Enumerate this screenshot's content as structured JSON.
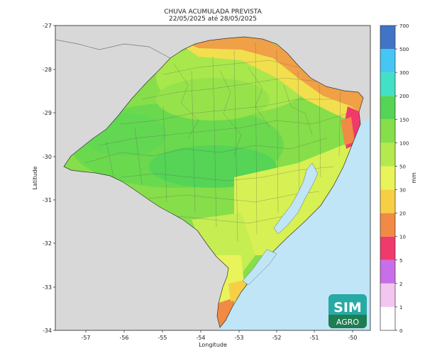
{
  "title": "CHUVA ACUMULADA PREVISTA",
  "subtitle": "22/05/2025 até 28/05/2025",
  "axes": {
    "xlabel": "Longitude",
    "ylabel": "Latitude",
    "x_ticks": [
      "-57",
      "-56",
      "-55",
      "-54",
      "-53",
      "-52",
      "-51",
      "-50"
    ],
    "y_ticks": [
      "-27",
      "-28",
      "-29",
      "-30",
      "-31",
      "-32",
      "-33",
      "-34"
    ]
  },
  "colorbar": {
    "unit": "mm",
    "ticks": [
      "0",
      "1",
      "2",
      "5",
      "10",
      "20",
      "30",
      "50",
      "100",
      "150",
      "200",
      "300",
      "500",
      "700"
    ],
    "colors": [
      "#ffffff",
      "#f2c6f0",
      "#c86ee8",
      "#f03a6b",
      "#f08a44",
      "#f7cf45",
      "#e9f35a",
      "#b4ea4e",
      "#86de4a",
      "#55d456",
      "#42e0c6",
      "#45c6f3",
      "#4173c7",
      "#3b3e9a"
    ]
  },
  "logo": {
    "line1": "SIM",
    "line2": "AGRO"
  },
  "colors": {
    "land_outside": "#d8d8d8",
    "ocean": "#bfe5f7",
    "lagoon": "#bfe5f7"
  }
}
